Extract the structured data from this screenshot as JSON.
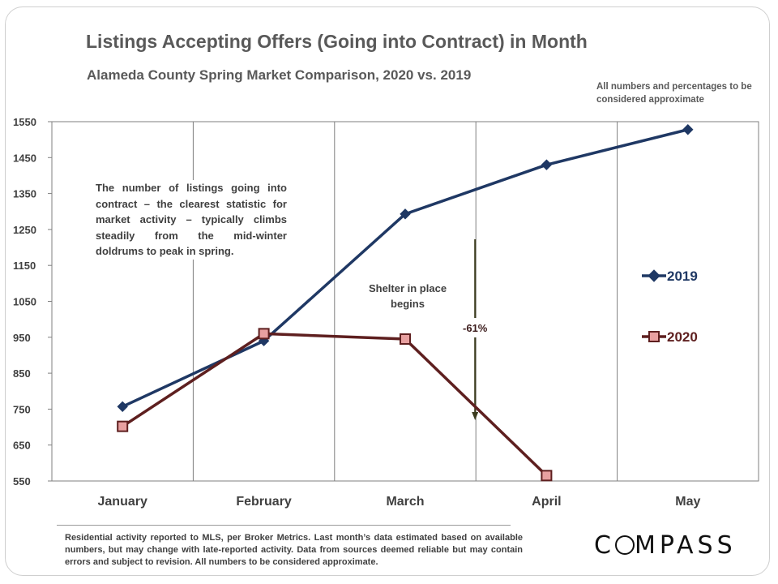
{
  "title": "Listings Accepting Offers (Going into Contract) in Month",
  "subtitle": "Alameda County Spring Market Comparison,  2020 vs. 2019",
  "note": "All numbers and percentages to be considered approximate",
  "annotation": "The number of listings going into contract – the clearest statistic for market activity – typically climbs steadily from the mid-winter doldrums to peak in spring.",
  "shelter_label": "Shelter in place begins",
  "change_label": "-61%",
  "footer": "Residential activity reported to MLS, per Broker Metrics. Last month’s data estimated based on available numbers, but may change with late-reported activity. Data from sources deemed reliable but may contain errors and subject to revision. All numbers to be considered approximate.",
  "logo": {
    "text_before": "C",
    "text_after": "MPASS"
  },
  "colors": {
    "series_2019": "#1f3864",
    "series_2020": "#5e1f1f",
    "marker_2020_fill": "#e8a0a0",
    "arrow": "#3b3b1e"
  },
  "chart_data": {
    "type": "line",
    "categories": [
      "January",
      "February",
      "March",
      "April",
      "May"
    ],
    "yticks": [
      550,
      650,
      750,
      850,
      950,
      1050,
      1150,
      1250,
      1350,
      1450,
      1550
    ],
    "ylim": [
      550,
      1550
    ],
    "grid": "vertical category lines",
    "legend": "right",
    "series": [
      {
        "name": "2019",
        "values": [
          757,
          940,
          1293,
          1430,
          1528
        ]
      },
      {
        "name": "2020",
        "values": [
          702,
          960,
          945,
          565,
          null
        ]
      }
    ]
  }
}
